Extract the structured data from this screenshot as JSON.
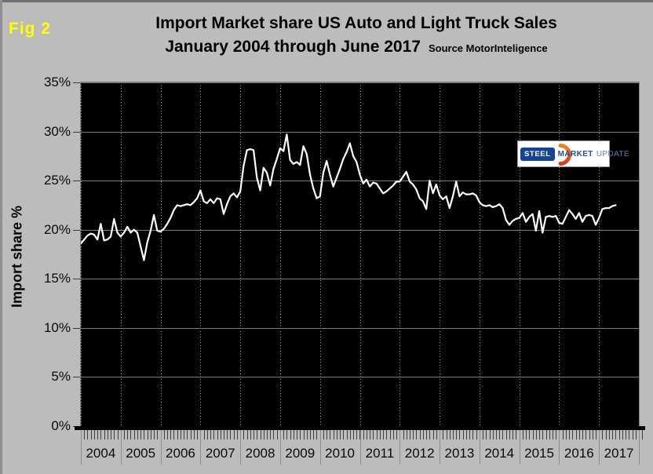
{
  "fig_label": "Fig 2",
  "title": {
    "line1": "Import Market share US Auto and Light Truck Sales",
    "line2": "January 2004 through June 2017",
    "source": "Source MotorInteligence"
  },
  "y_axis": {
    "title": "Import share %"
  },
  "logo": {
    "steel": "STEEL",
    "market": "MARKET",
    "update": "UPDATE"
  },
  "colors": {
    "background": "#bcbcbc",
    "plot_background": "#000000",
    "line": "#ffffff",
    "fig_label": "#ffff00",
    "h_grid": "#7d7d7d",
    "v_grid": "#a8a8a8",
    "month_tick": "#3f3f3f",
    "year_separator": "#8c8c8c",
    "axis_bar": "#000000",
    "logo_blue": "#1e50a5",
    "logo_light_blue": "#6079b5",
    "logo_orange": "#e8551c"
  },
  "chart_data": {
    "type": "line",
    "title": "Import Market share US Auto and Light Truck Sales",
    "subtitle": "January 2004 through June 2017",
    "source": "MotorInteligence",
    "xlabel": "",
    "ylabel": "Import share %",
    "ylim": [
      0,
      35
    ],
    "yticks": [
      0,
      5,
      10,
      15,
      20,
      25,
      30,
      35
    ],
    "ytick_suffix": "%",
    "x_frequency": "monthly",
    "x_range": "2004-01 to 2017-06",
    "x_years": [
      2004,
      2005,
      2006,
      2007,
      2008,
      2009,
      2010,
      2011,
      2012,
      2013,
      2014,
      2015,
      2016,
      2017
    ],
    "grid": {
      "horizontal": "solid",
      "vertical": "dotted at each year start"
    },
    "legend": "none",
    "series": [
      {
        "name": "Import share %",
        "values": [
          18.6,
          19.0,
          19.4,
          19.6,
          19.5,
          19.0,
          20.6,
          18.9,
          19.0,
          19.3,
          21.1,
          19.7,
          19.3,
          19.7,
          20.3,
          19.7,
          20.0,
          19.7,
          18.3,
          16.9,
          18.7,
          19.9,
          21.5,
          19.9,
          19.8,
          20.1,
          20.6,
          21.2,
          22.0,
          22.5,
          22.4,
          22.5,
          22.6,
          22.5,
          22.8,
          23.2,
          24.0,
          22.9,
          22.7,
          23.1,
          22.7,
          23.2,
          23.1,
          21.6,
          22.6,
          23.4,
          23.7,
          23.3,
          23.9,
          26.5,
          28.1,
          28.2,
          28.1,
          25.3,
          24.0,
          26.3,
          25.8,
          24.5,
          26.2,
          27.2,
          28.3,
          28.0,
          29.7,
          27.1,
          26.7,
          26.9,
          26.6,
          28.5,
          27.7,
          25.6,
          24.2,
          23.2,
          23.4,
          25.8,
          27.0,
          25.6,
          24.4,
          25.3,
          26.2,
          27.2,
          27.9,
          28.8,
          27.5,
          26.9,
          25.6,
          24.7,
          25.1,
          24.4,
          24.8,
          24.7,
          24.2,
          23.7,
          23.9,
          24.2,
          24.5,
          24.9,
          24.9,
          25.4,
          25.9,
          24.9,
          24.6,
          24.1,
          23.2,
          22.9,
          22.1,
          25.0,
          23.7,
          24.6,
          23.5,
          23.1,
          23.4,
          22.2,
          23.4,
          24.9,
          23.4,
          23.8,
          23.6,
          23.6,
          23.7,
          23.5,
          22.8,
          22.5,
          22.4,
          22.5,
          22.3,
          22.4,
          22.6,
          22.2,
          21.0,
          20.5,
          20.9,
          21.1,
          21.2,
          21.7,
          20.8,
          21.3,
          21.6,
          19.9,
          21.9,
          19.7,
          21.3,
          21.4,
          21.3,
          21.4,
          20.7,
          20.6,
          21.3,
          22.0,
          21.6,
          21.1,
          21.7,
          20.8,
          21.4,
          21.5,
          21.4,
          20.5,
          21.2,
          22.1,
          22.2,
          22.2,
          22.4,
          22.5
        ]
      }
    ]
  }
}
